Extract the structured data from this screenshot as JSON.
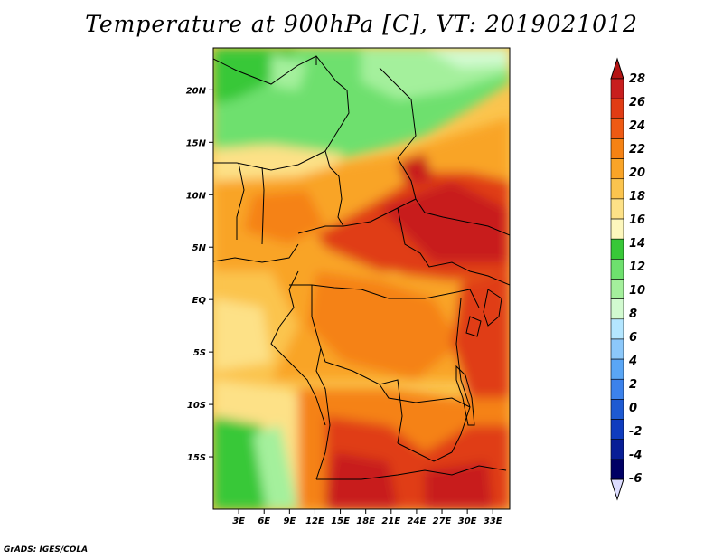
{
  "title": "Temperature at 900hPa [C], VT: 2019021012",
  "credit": "GrADS: IGES/COLA",
  "map": {
    "region": "Central Africa",
    "variable": "Temperature",
    "level": "900hPa",
    "units": "C",
    "valid_time": "2019021012",
    "lon_range": [
      0,
      35
    ],
    "lat_range": [
      -20,
      24
    ],
    "lon_labels": [
      "3E",
      "6E",
      "9E",
      "12E",
      "15E",
      "18E",
      "21E",
      "24E",
      "27E",
      "30E",
      "33E"
    ],
    "lon_values": [
      3,
      6,
      9,
      12,
      15,
      18,
      21,
      24,
      27,
      30,
      33
    ],
    "lat_labels": [
      "20N",
      "15N",
      "10N",
      "5N",
      "EQ",
      "5S",
      "10S",
      "15S"
    ],
    "lat_values": [
      20,
      15,
      10,
      5,
      0,
      -5,
      -10,
      -15
    ]
  },
  "colorbar": {
    "labels": [
      "28",
      "26",
      "24",
      "22",
      "20",
      "18",
      "16",
      "14",
      "12",
      "10",
      "8",
      "6",
      "4",
      "2",
      "0",
      "-2",
      "-4",
      "-6"
    ],
    "colors": [
      "#c81e1e",
      "#e03c14",
      "#ee5a14",
      "#f58214",
      "#f9a427",
      "#fbc44e",
      "#fde187",
      "#fdf7bd",
      "#38c838",
      "#6ee06e",
      "#a4f09c",
      "#d2fad0",
      "#b4e6ff",
      "#8cc8fa",
      "#5aa6f5",
      "#3c82eb",
      "#1e5ad2",
      "#0f3cbe",
      "#081e96",
      "#000064"
    ],
    "top_cap": "#b41414",
    "bottom_cap": "#dcdcff"
  }
}
